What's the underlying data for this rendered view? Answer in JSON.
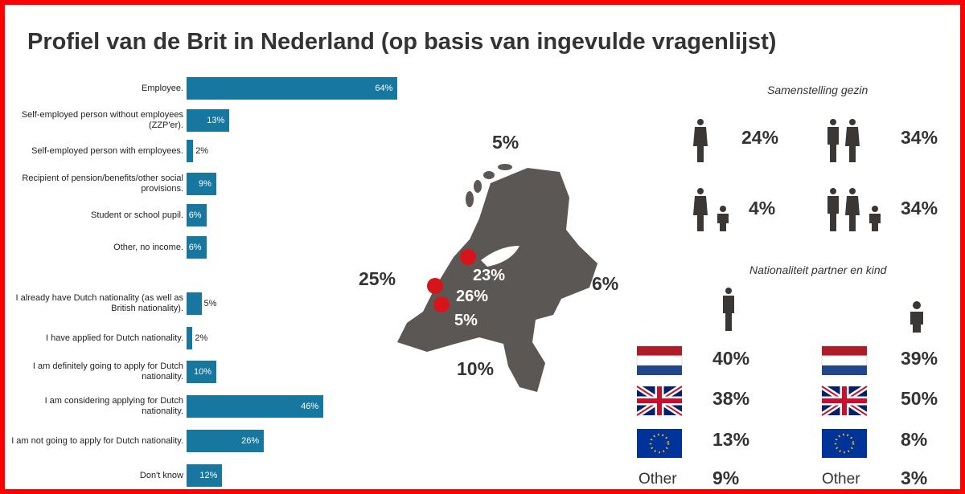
{
  "title": "Profiel van de Brit in Nederland (op basis van ingevulde vragenlijst)",
  "chart_data": [
    {
      "type": "bar",
      "orientation": "horizontal",
      "color": "#17779f",
      "categories": [
        "Employee.",
        "Self-employed person without employees (ZZP'er).",
        "Self-employed person with employees.",
        "Recipient of pension/benefits/other social provisions.",
        "Student or school pupil.",
        "Other, no income."
      ],
      "values": [
        64,
        13,
        2,
        9,
        6,
        6
      ],
      "value_labels": [
        "64%",
        "13%",
        "2%",
        "9%",
        "6%",
        "6%"
      ]
    },
    {
      "type": "bar",
      "orientation": "horizontal",
      "color": "#17779f",
      "categories": [
        "I already have Dutch nationality (as well as British nationality).",
        "I have applied for Dutch nationality.",
        "I am definitely going to apply for Dutch nationality.",
        "I am considering applying for Dutch nationality.",
        "I am not going to apply for Dutch nationality.",
        "Don't know"
      ],
      "values": [
        5,
        2,
        10,
        46,
        26,
        12
      ],
      "value_labels": [
        "5%",
        "2%",
        "10%",
        "46%",
        "26%",
        "12%"
      ]
    }
  ],
  "map": {
    "regions": [
      "5%",
      "25%",
      "6%",
      "10%"
    ],
    "cities": [
      "23%",
      "26%",
      "5%"
    ]
  },
  "family": {
    "title": "Samenstelling gezin",
    "items": [
      "24%",
      "34%",
      "4%",
      "34%"
    ]
  },
  "nationality": {
    "title": "Nationaliteit partner en kind",
    "partner": [
      "40%",
      "38%",
      "13%",
      "9%"
    ],
    "child": [
      "39%",
      "50%",
      "8%",
      "3%"
    ],
    "other_label": "Other"
  }
}
